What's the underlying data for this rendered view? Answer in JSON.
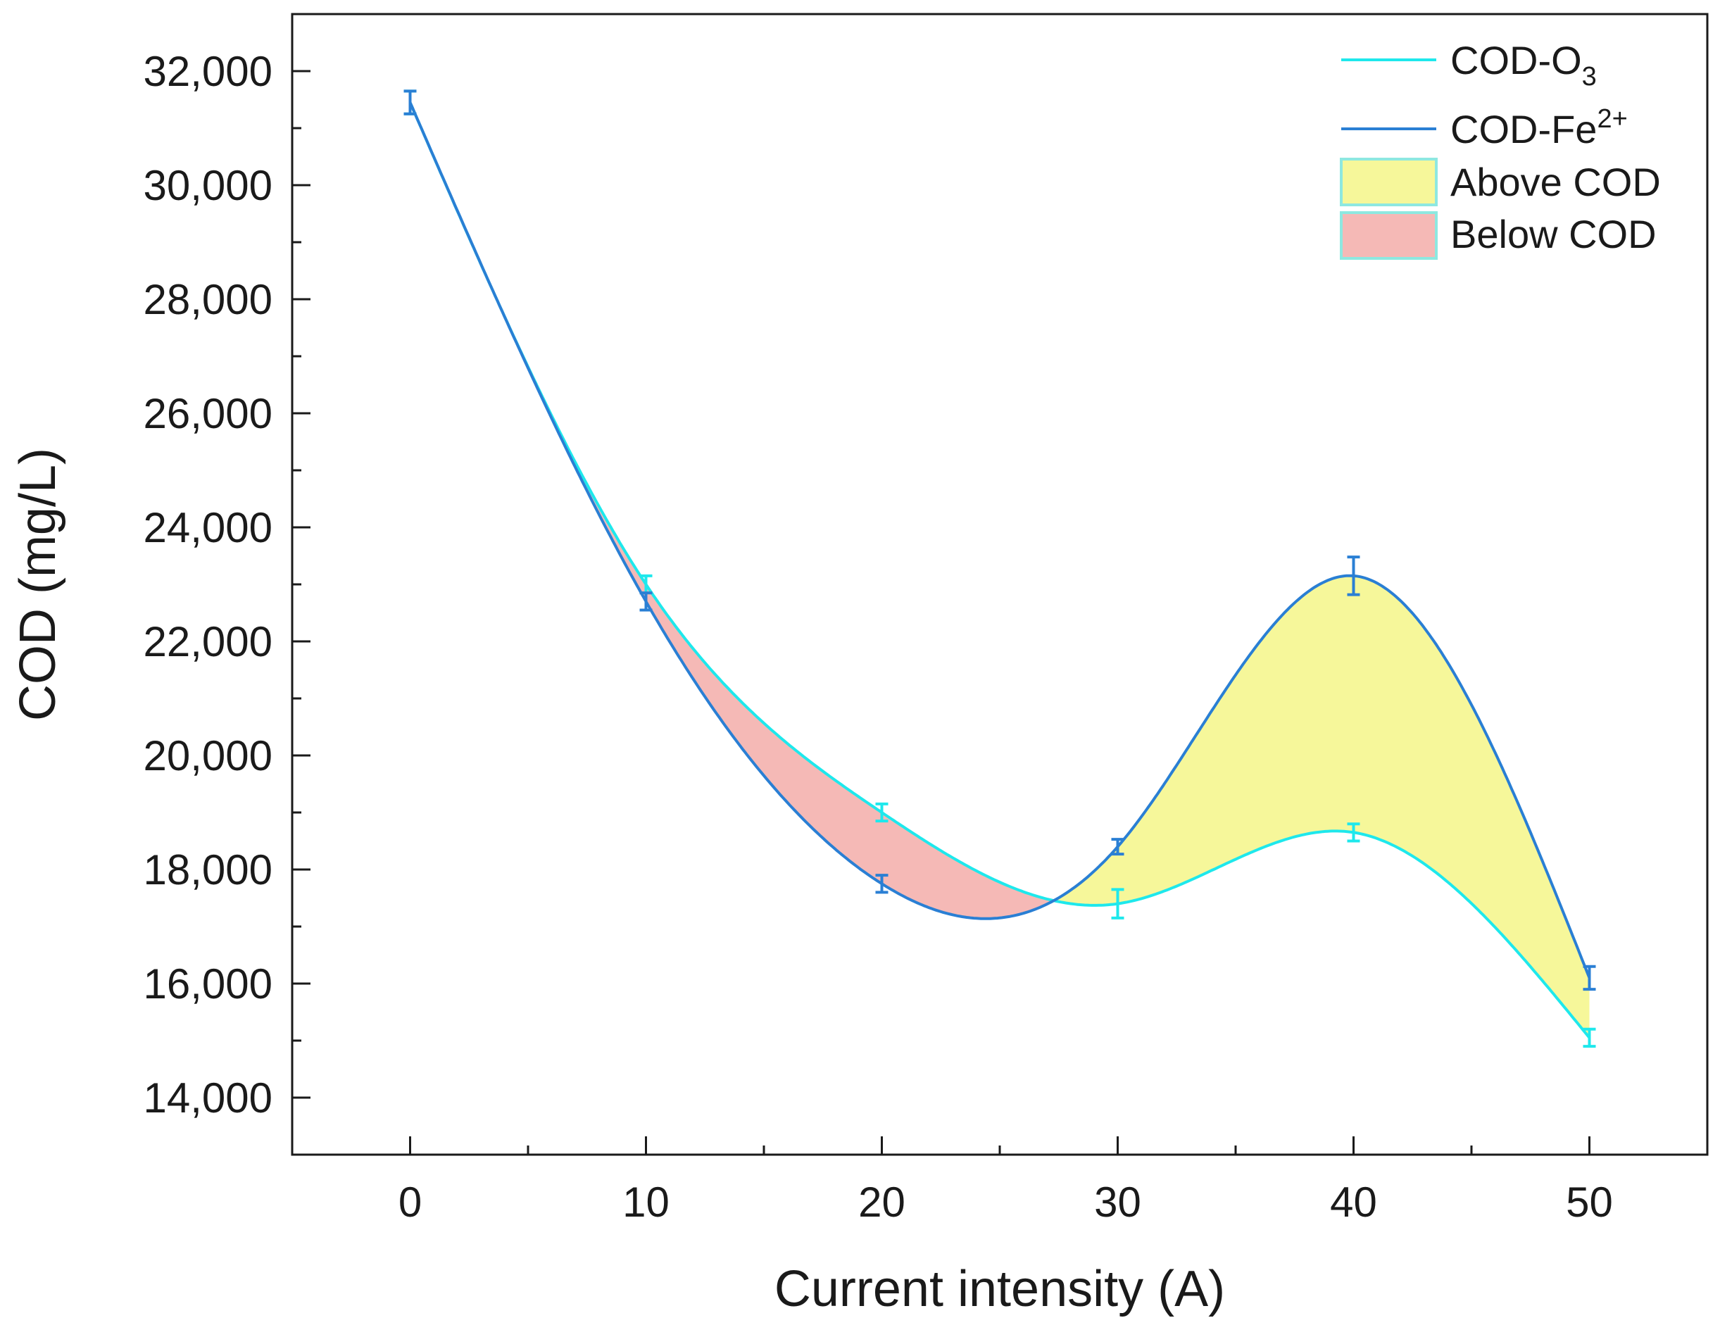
{
  "chart_data": {
    "type": "line",
    "title": "",
    "xlabel": "Current intensity (A)",
    "ylabel": "COD (mg/L)",
    "xlim": [
      -5,
      55
    ],
    "ylim": [
      13000,
      33000
    ],
    "x_ticks": [
      0,
      10,
      20,
      30,
      40,
      50
    ],
    "x_tick_labels": [
      "0",
      "10",
      "20",
      "30",
      "40",
      "50"
    ],
    "y_ticks": [
      14000,
      16000,
      18000,
      20000,
      22000,
      24000,
      26000,
      28000,
      30000,
      32000
    ],
    "y_tick_labels": [
      "14,000",
      "16,000",
      "18,000",
      "20,000",
      "22,000",
      "24,000",
      "26,000",
      "28,000",
      "30,000",
      "32,000"
    ],
    "grid": false,
    "legend_position": "top-right",
    "series": [
      {
        "name": "COD-O3",
        "legend_main": "COD-O",
        "legend_sub": "3",
        "color": "#1ee8ec",
        "x": [
          0,
          10,
          20,
          30,
          40,
          50
        ],
        "values": [
          31450,
          23000,
          19000,
          17400,
          18650,
          15050
        ],
        "errors": [
          200,
          150,
          150,
          250,
          150,
          150
        ]
      },
      {
        "name": "COD-Fe2+",
        "legend_main": "COD-Fe",
        "legend_sup": "2+",
        "color": "#2a7fd4",
        "x": [
          0,
          10,
          20,
          30,
          40,
          50
        ],
        "values": [
          31450,
          22700,
          17750,
          18400,
          23150,
          16100
        ],
        "errors": [
          200,
          150,
          150,
          130,
          330,
          200
        ]
      }
    ],
    "fill_areas": [
      {
        "name": "Above COD",
        "color": "#f6f79a",
        "edge": "#8ee8e0"
      },
      {
        "name": "Below COD",
        "color": "#f5b9b6",
        "edge": "#8ee8e0"
      }
    ]
  }
}
